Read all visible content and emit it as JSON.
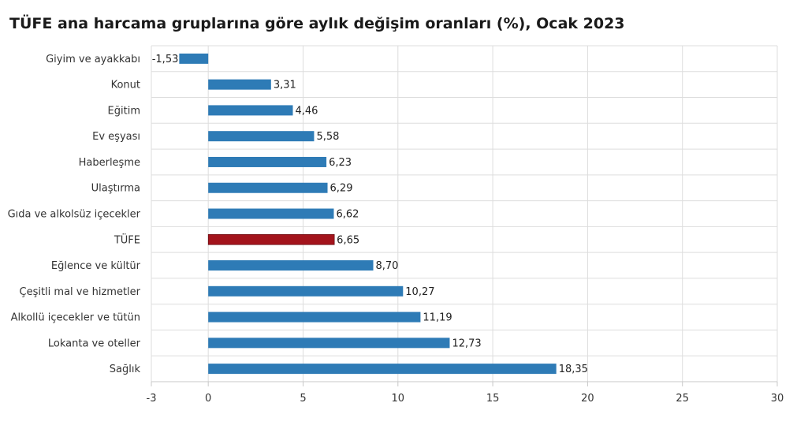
{
  "chart_data": {
    "type": "bar",
    "orientation": "horizontal",
    "title": "TÜFE ana harcama gruplarına göre aylık değişim oranları (%), Ocak 2023",
    "categories": [
      "Giyim ve ayakkabı",
      "Konut",
      "Eğitim",
      "Ev eşyası",
      "Haberleşme",
      "Ulaştırma",
      "Gıda ve alkolsüz içecekler",
      "TÜFE",
      "Eğlence ve kültür",
      "Çeşitli mal ve hizmetler",
      "Alkollü içecekler ve tütün",
      "Lokanta ve oteller",
      "Sağlık"
    ],
    "values": [
      -1.53,
      3.31,
      4.46,
      5.58,
      6.23,
      6.29,
      6.62,
      6.65,
      8.7,
      10.27,
      11.19,
      12.73,
      18.35
    ],
    "value_labels": [
      "-1,53",
      "3,31",
      "4,46",
      "5,58",
      "6,23",
      "6,29",
      "6,62",
      "6,65",
      "8,70",
      "10,27",
      "11,19",
      "12,73",
      "18,35"
    ],
    "highlight_category": "TÜFE",
    "xlim": [
      -3,
      30
    ],
    "xticks": [
      -3,
      0,
      5,
      10,
      15,
      20,
      25,
      30
    ],
    "xtick_labels": [
      "-3",
      "0",
      "5",
      "10",
      "15",
      "20",
      "25",
      "30"
    ],
    "xlabel": "",
    "ylabel": "",
    "grid": true,
    "colors": {
      "bar": "#2e7bb6",
      "highlight": "#a3141c",
      "grid": "#dddddd",
      "axis": "#c8c8c8"
    }
  }
}
